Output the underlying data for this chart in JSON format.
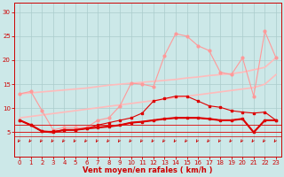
{
  "x": [
    0,
    1,
    2,
    3,
    4,
    5,
    6,
    7,
    8,
    9,
    10,
    11,
    12,
    13,
    14,
    15,
    16,
    17,
    18,
    19,
    20,
    21,
    22,
    23
  ],
  "line_bell": [
    7.5,
    6.5,
    5.2,
    5.2,
    5.5,
    5.5,
    5.8,
    6.5,
    7.0,
    7.5,
    8.0,
    9.0,
    11.5,
    12.0,
    12.5,
    12.5,
    11.5,
    10.5,
    10.2,
    9.5,
    9.2,
    9.0,
    9.2,
    7.5
  ],
  "line_flat1": [
    7.5,
    6.5,
    5.2,
    5.0,
    5.5,
    5.5,
    5.8,
    6.0,
    6.2,
    6.5,
    7.0,
    7.2,
    7.5,
    7.8,
    8.0,
    8.0,
    8.0,
    7.8,
    7.5,
    7.5,
    7.8,
    5.0,
    7.5,
    7.5
  ],
  "line_flat2": [
    7.5,
    6.5,
    5.2,
    5.0,
    5.5,
    5.5,
    5.8,
    6.0,
    6.2,
    6.5,
    7.0,
    7.2,
    7.5,
    7.8,
    8.0,
    8.0,
    8.0,
    7.8,
    7.5,
    7.5,
    7.8,
    5.0,
    7.5,
    7.5
  ],
  "line_pink_zigzag": [
    13.0,
    13.5,
    9.5,
    5.5,
    6.0,
    6.0,
    6.0,
    7.5,
    8.0,
    10.5,
    15.2,
    15.0,
    14.5,
    21.0,
    25.5,
    25.0,
    23.0,
    22.0,
    17.5,
    17.0,
    20.5,
    12.5,
    26.0,
    20.5
  ],
  "line_slope_upper": [
    13.0,
    13.2,
    13.4,
    13.6,
    13.8,
    14.0,
    14.2,
    14.5,
    14.8,
    15.0,
    15.2,
    15.4,
    15.6,
    15.8,
    16.0,
    16.3,
    16.5,
    16.8,
    17.0,
    17.2,
    17.5,
    18.0,
    18.5,
    20.5
  ],
  "line_slope_lower": [
    8.0,
    8.3,
    8.6,
    8.9,
    9.2,
    9.5,
    9.8,
    10.1,
    10.4,
    10.7,
    11.0,
    11.3,
    11.6,
    11.9,
    12.2,
    12.5,
    12.8,
    13.1,
    13.4,
    13.7,
    14.0,
    14.3,
    15.0,
    17.0
  ],
  "bg_color": "#cce8e8",
  "grid_color": "#aacccc",
  "pink_line_color": "#ff9999",
  "slope_line_color": "#ffbbbb",
  "dark_red_color": "#dd0000",
  "arrow_color": "#cc0000",
  "xlabel": "Vent moyen/en rafales ( km/h )",
  "xlabel_color": "#cc0000",
  "tick_color": "#cc0000",
  "ylim": [
    0,
    32
  ],
  "xlim": [
    -0.5,
    23.5
  ],
  "yticks": [
    5,
    10,
    15,
    20,
    25,
    30
  ],
  "xticks": [
    0,
    1,
    2,
    3,
    4,
    5,
    6,
    7,
    8,
    9,
    10,
    11,
    12,
    13,
    14,
    15,
    16,
    17,
    18,
    19,
    20,
    21,
    22,
    23
  ]
}
